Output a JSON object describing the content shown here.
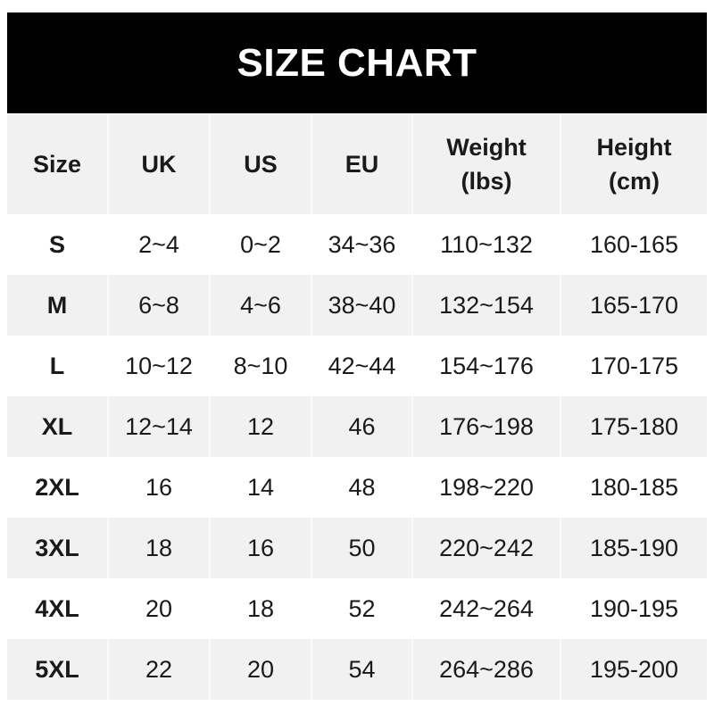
{
  "title": "SIZE CHART",
  "headers": [
    "Size",
    "UK",
    "US",
    "EU",
    "Weight\n(lbs)",
    "Height\n(cm)"
  ],
  "header_lines": [
    [
      "Size"
    ],
    [
      "UK"
    ],
    [
      "US"
    ],
    [
      "EU"
    ],
    [
      "Weight",
      "(lbs)"
    ],
    [
      "Height",
      "(cm)"
    ]
  ],
  "rows": [
    [
      "S",
      "2~4",
      "0~2",
      "34~36",
      "110~132",
      "160-165"
    ],
    [
      "M",
      "6~8",
      "4~6",
      "38~40",
      "132~154",
      "165-170"
    ],
    [
      "L",
      "10~12",
      "8~10",
      "42~44",
      "154~176",
      "170-175"
    ],
    [
      "XL",
      "12~14",
      "12",
      "46",
      "176~198",
      "175-180"
    ],
    [
      "2XL",
      "16",
      "14",
      "48",
      "198~220",
      "180-185"
    ],
    [
      "3XL",
      "18",
      "16",
      "50",
      "220~242",
      "185-190"
    ],
    [
      "4XL",
      "20",
      "18",
      "52",
      "242~264",
      "190-195"
    ],
    [
      "5XL",
      "22",
      "20",
      "54",
      "264~286",
      "195-200"
    ]
  ],
  "colors": {
    "title_bg": "#000000",
    "title_text": "#ffffff",
    "stripe": "#f1f1f1"
  }
}
